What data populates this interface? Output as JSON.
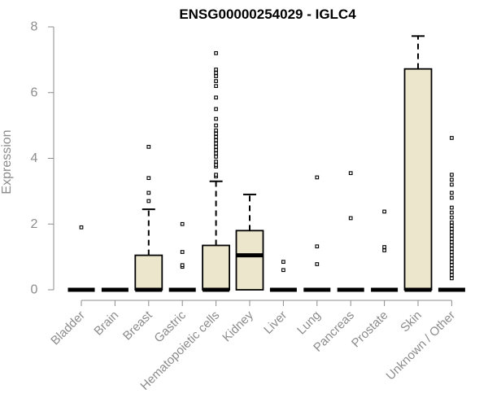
{
  "chart_data": {
    "type": "box",
    "title": "ENSG00000254029 - IGLC4",
    "ylabel": "Expression",
    "xlabel": "",
    "ylim": [
      0,
      8
    ],
    "yticks": [
      0,
      2,
      4,
      6,
      8
    ],
    "box_fill": "#ece6cc",
    "categories": [
      "Bladder",
      "Brain",
      "Breast",
      "Gastric",
      "Hematopoietic cells",
      "Kidney",
      "Liver",
      "Lung",
      "Pancreas",
      "Prostate",
      "Skin",
      "Unknown / Other"
    ],
    "boxes": [
      {
        "q1": 0,
        "median": 0,
        "q3": 0,
        "whisker_low": 0,
        "whisker_high": 0,
        "outliers": [
          1.9
        ]
      },
      {
        "q1": 0,
        "median": 0,
        "q3": 0,
        "whisker_low": 0,
        "whisker_high": 0,
        "outliers": []
      },
      {
        "q1": 0,
        "median": 0,
        "q3": 1.05,
        "whisker_low": 0,
        "whisker_high": 2.45,
        "outliers": [
          2.7,
          2.95,
          3.4,
          4.35
        ]
      },
      {
        "q1": 0,
        "median": 0,
        "q3": 0,
        "whisker_low": 0,
        "whisker_high": 0,
        "outliers": [
          0.7,
          0.75,
          1.15,
          2.0
        ]
      },
      {
        "q1": 0,
        "median": 0,
        "q3": 1.35,
        "whisker_low": 0,
        "whisker_high": 3.3,
        "outliers": [
          3.45,
          3.5,
          3.75,
          3.8,
          3.9,
          4.05,
          4.15,
          4.25,
          4.35,
          4.45,
          4.55,
          4.65,
          4.75,
          4.85,
          5.0,
          5.2,
          5.5,
          5.85,
          6.2,
          6.35,
          6.5,
          6.6,
          6.7,
          7.2
        ]
      },
      {
        "q1": 0,
        "median": 1.05,
        "q3": 1.8,
        "whisker_low": 0,
        "whisker_high": 2.9,
        "outliers": []
      },
      {
        "q1": 0,
        "median": 0,
        "q3": 0,
        "whisker_low": 0,
        "whisker_high": 0,
        "outliers": [
          0.6,
          0.85
        ]
      },
      {
        "q1": 0,
        "median": 0,
        "q3": 0,
        "whisker_low": 0,
        "whisker_high": 0,
        "outliers": [
          0.78,
          1.32,
          3.42
        ]
      },
      {
        "q1": 0,
        "median": 0,
        "q3": 0,
        "whisker_low": 0,
        "whisker_high": 0,
        "outliers": [
          2.18,
          3.55
        ]
      },
      {
        "q1": 0,
        "median": 0,
        "q3": 0,
        "whisker_low": 0,
        "whisker_high": 0,
        "outliers": [
          1.2,
          1.3,
          2.38
        ]
      },
      {
        "q1": 0,
        "median": 0,
        "q3": 6.72,
        "whisker_low": 0,
        "whisker_high": 7.72,
        "outliers": []
      },
      {
        "q1": 0,
        "median": 0,
        "q3": 0,
        "whisker_low": 0,
        "whisker_high": 0,
        "outliers": [
          0.35,
          0.45,
          0.55,
          0.65,
          0.75,
          0.85,
          0.95,
          1.05,
          1.15,
          1.25,
          1.35,
          1.45,
          1.55,
          1.65,
          1.75,
          1.85,
          1.95,
          2.05,
          2.2,
          2.35,
          2.5,
          2.8,
          2.95,
          3.2,
          3.35,
          3.5,
          4.62
        ]
      }
    ]
  }
}
